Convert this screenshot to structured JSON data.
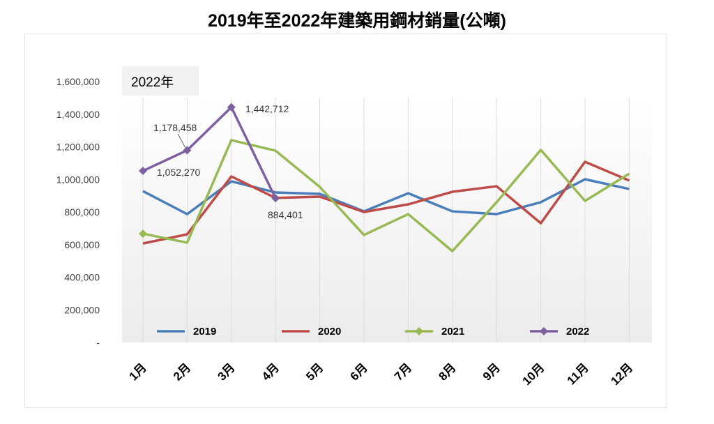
{
  "chart_data": {
    "type": "line",
    "title": "2019年至2022年建築用鋼材銷量(公噸)",
    "inset_label": "2022年",
    "categories": [
      "1月",
      "2月",
      "3月",
      "4月",
      "5月",
      "6月",
      "7月",
      "8月",
      "9月",
      "10月",
      "11月",
      "12月"
    ],
    "ylim": [
      0,
      1600000
    ],
    "yticks": [
      0,
      200000,
      400000,
      600000,
      800000,
      1000000,
      1200000,
      1400000,
      1600000
    ],
    "ytick_labels": [
      "-",
      "200,000",
      "400,000",
      "600,000",
      "800,000",
      "1,000,000",
      "1,200,000",
      "1,400,000",
      "1,600,000"
    ],
    "grid": "vertical",
    "legend": "bottom-inside",
    "series": [
      {
        "name": "2019",
        "color": "#4a7ebb",
        "marker": "none",
        "values": [
          928000,
          787000,
          988000,
          920000,
          911000,
          804000,
          915000,
          804000,
          787000,
          860000,
          1001000,
          941000
        ]
      },
      {
        "name": "2020",
        "color": "#be4b48",
        "marker": "none",
        "values": [
          607000,
          663000,
          1018000,
          886000,
          894000,
          800000,
          847000,
          924000,
          958000,
          731000,
          1108000,
          993000
        ]
      },
      {
        "name": "2021",
        "color": "#98b954",
        "marker": "diamond",
        "values": [
          667000,
          612000,
          1241000,
          1176000,
          954000,
          659000,
          787000,
          560000,
          860000,
          1181000,
          868000,
          1035000
        ]
      },
      {
        "name": "2022",
        "color": "#7d60a0",
        "marker": "diamond",
        "values": [
          1052270,
          1178458,
          1442712,
          884401,
          null,
          null,
          null,
          null,
          null,
          null,
          null,
          null
        ],
        "data_labels": [
          "1,052,270",
          "1,178,458",
          "1,442,712",
          "884,401"
        ]
      }
    ]
  }
}
